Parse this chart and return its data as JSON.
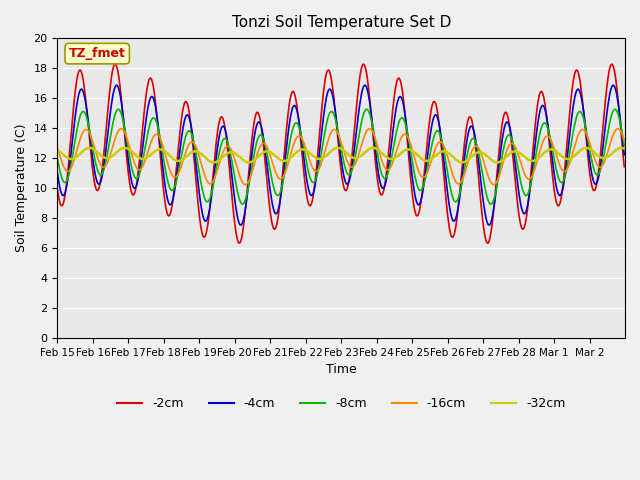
{
  "title": "Tonzi Soil Temperature Set D",
  "xlabel": "Time",
  "ylabel": "Soil Temperature (C)",
  "ylim": [
    0,
    20
  ],
  "yticks": [
    0,
    2,
    4,
    6,
    8,
    10,
    12,
    14,
    16,
    18,
    20
  ],
  "annotation_text": "TZ_fmet",
  "annotation_color": "#cc0000",
  "annotation_bg": "#ffffcc",
  "annotation_border": "#999900",
  "bg_color": "#e8e8e8",
  "fig_color": "#f0f0f0",
  "series": {
    "-2cm": {
      "color": "#dd0000",
      "linewidth": 1.2
    },
    "-4cm": {
      "color": "#0000cc",
      "linewidth": 1.2
    },
    "-8cm": {
      "color": "#00bb00",
      "linewidth": 1.2
    },
    "-16cm": {
      "color": "#ff8800",
      "linewidth": 1.2
    },
    "-32cm": {
      "color": "#cccc00",
      "linewidth": 1.8
    }
  },
  "x_tick_labels": [
    "Feb 15",
    "Feb 16",
    "Feb 17",
    "Feb 18",
    "Feb 19",
    "Feb 20",
    "Feb 21",
    "Feb 22",
    "Feb 23",
    "Feb 24",
    "Feb 25",
    "Feb 26",
    "Feb 27",
    "Feb 28",
    "Mar 1",
    "Mar 2"
  ],
  "n_days": 16,
  "points_per_day": 48
}
